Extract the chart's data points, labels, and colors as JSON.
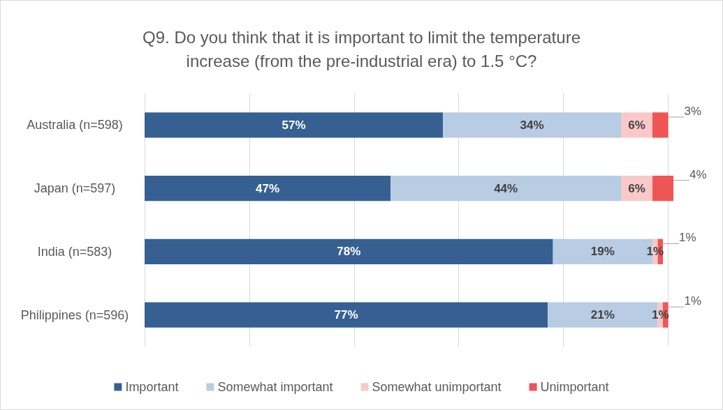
{
  "chart_data": {
    "type": "bar",
    "orientation": "horizontal",
    "stacked": true,
    "title": "Q9. Do you think that it is important to limit the temperature\nincrease (from the pre-industrial era) to 1.5 °C?",
    "categories": [
      "Australia (n=598)",
      "Japan (n=597)",
      "India (n=583)",
      "Philippines (n=596)"
    ],
    "series": [
      {
        "name": "Important",
        "color": "#366092",
        "values": [
          57,
          47,
          78,
          77
        ],
        "value_labels": [
          "57%",
          "47%",
          "78%",
          "77%"
        ]
      },
      {
        "name": "Somewhat important",
        "color": "#b8cce4",
        "values": [
          34,
          44,
          19,
          21
        ],
        "value_labels": [
          "34%",
          "44%",
          "19%",
          "21%"
        ]
      },
      {
        "name": "Somewhat unimportant",
        "color": "#f9c8c8",
        "values": [
          6,
          6,
          1,
          1
        ],
        "value_labels": [
          "6%",
          "6%",
          "1%",
          "1%"
        ]
      },
      {
        "name": "Unimportant",
        "color": "#f05555",
        "values": [
          3,
          4,
          1,
          1
        ],
        "value_labels": [
          "3%",
          "4%",
          "1%",
          "1%"
        ]
      }
    ],
    "xlim": [
      0,
      101
    ],
    "xticks": [
      {
        "value": 0,
        "label": null
      },
      {
        "value": 20,
        "label": null
      },
      {
        "value": 40,
        "label": null
      },
      {
        "value": 60,
        "label": null
      },
      {
        "value": 80,
        "label": null
      },
      {
        "value": 100,
        "label": null
      }
    ],
    "tick_labels": "y",
    "grid": "x",
    "legend": "bottom"
  }
}
